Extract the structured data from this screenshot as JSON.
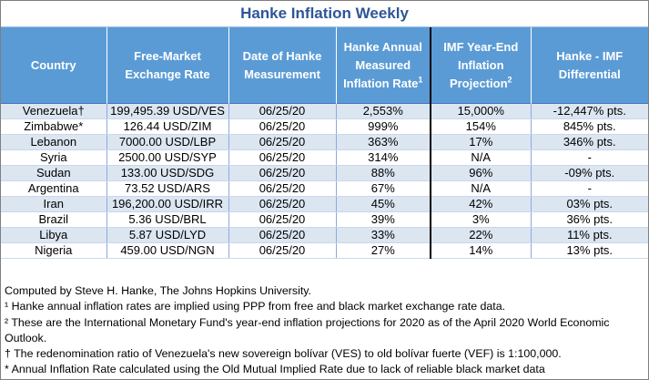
{
  "title": "Hanke Inflation Weekly",
  "headers": [
    {
      "text": "Country",
      "sup": ""
    },
    {
      "text": "Free-Market Exchange Rate",
      "sup": ""
    },
    {
      "text": "Date of Hanke Measurement",
      "sup": ""
    },
    {
      "text": "Hanke Annual Measured Inflation Rate",
      "sup": "1"
    },
    {
      "text": "IMF Year-End Inflation Projection",
      "sup": "2"
    },
    {
      "text": "Hanke - IMF Differential",
      "sup": ""
    }
  ],
  "rows": [
    {
      "country": "Venezuela†",
      "rate": "199,495.39 USD/VES",
      "date": "06/25/20",
      "hanke": "2,553%",
      "imf": "15,000%",
      "diff": "-12,447% pts."
    },
    {
      "country": "Zimbabwe*",
      "rate": "126.44 USD/ZIM",
      "date": "06/25/20",
      "hanke": "999%",
      "imf": "154%",
      "diff": "845% pts."
    },
    {
      "country": "Lebanon",
      "rate": "7000.00 USD/LBP",
      "date": "06/25/20",
      "hanke": "363%",
      "imf": "17%",
      "diff": "346% pts."
    },
    {
      "country": "Syria",
      "rate": "2500.00 USD/SYP",
      "date": "06/25/20",
      "hanke": "314%",
      "imf": "N/A",
      "diff": "-"
    },
    {
      "country": "Sudan",
      "rate": "133.00 USD/SDG",
      "date": "06/25/20",
      "hanke": "88%",
      "imf": "96%",
      "diff": "-09% pts."
    },
    {
      "country": "Argentina",
      "rate": "73.52 USD/ARS",
      "date": "06/25/20",
      "hanke": "67%",
      "imf": "N/A",
      "diff": "-"
    },
    {
      "country": "Iran",
      "rate": "196,200.00 USD/IRR",
      "date": "06/25/20",
      "hanke": "45%",
      "imf": "42%",
      "diff": "03% pts."
    },
    {
      "country": "Brazil",
      "rate": "5.36 USD/BRL",
      "date": "06/25/20",
      "hanke": "39%",
      "imf": "3%",
      "diff": "36% pts."
    },
    {
      "country": "Libya",
      "rate": "5.87 USD/LYD",
      "date": "06/25/20",
      "hanke": "33%",
      "imf": "22%",
      "diff": "11% pts."
    },
    {
      "country": "Nigeria",
      "rate": "459.00 USD/NGN",
      "date": "06/25/20",
      "hanke": "27%",
      "imf": "14%",
      "diff": "13% pts."
    }
  ],
  "notes": {
    "computed_by": "Computed by Steve H. Hanke, The Johns Hopkins University.",
    "note1": "¹ Hanke annual inflation rates are implied using PPP from free and black market exchange rate data.",
    "note2": "² These are the International Monetary Fund's year-end inflation projections for 2020 as of the April 2020 World Economic Outlook.",
    "note3": "† The redenomination ratio of Venezuela's new sovereign bolívar (VES) to old bolívar fuerte (VEF) is 1:100,000.",
    "note4": "* Annual Inflation Rate calculated using the Old Mutual Implied Rate due to lack of reliable black market data"
  }
}
